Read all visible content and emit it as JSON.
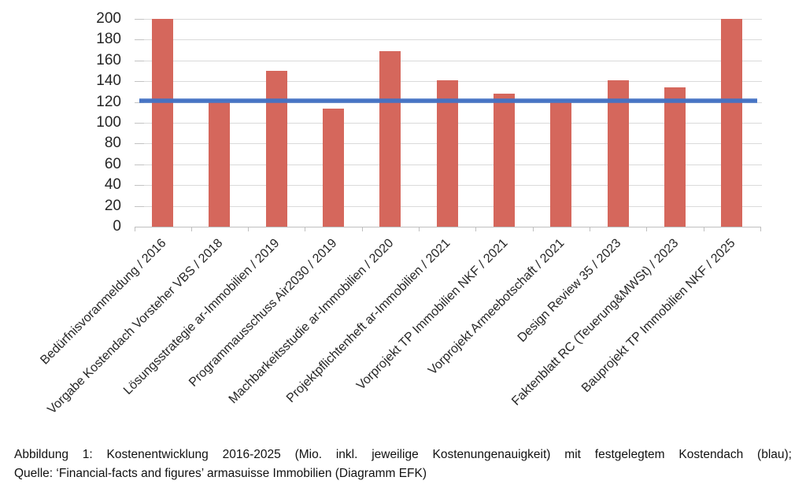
{
  "figure": {
    "caption_line1": "Abbildung 1: Kostenentwicklung 2016-2025 (Mio. inkl. jeweilige Kostenungenauigkeit) mit festgelegtem Kostendach (blau);",
    "caption_line2": "Quelle: ‘Financial-facts and figures’ armasuisse Immobilien (Diagramm EFK)"
  },
  "chart_data": {
    "type": "bar",
    "title": "",
    "xlabel": "",
    "ylabel": "",
    "categories": [
      "Bedürfnisvoranmeldung / 2016",
      "Vorgabe Kostendach Vorsteher VBS / 2018",
      "Lösungsstrategie ar-Immobilien / 2019",
      "Programmausschuss Air2030 / 2019",
      "Machbarkeitsstudie ar-Immobilien / 2020",
      "Projektpflichtenheft ar-Immobilien / 2021",
      "Vorprojekt TP Immobilien NKF / 2021",
      "Vorprojekt Armeebotschaft / 2021",
      "Design Review 35 / 2023",
      "Faktenblatt RC (Teuerung&MWSt) / 2023",
      "Bauprojekt TP Immobilien NKF / 2025"
    ],
    "values": [
      200,
      120,
      150,
      114,
      169,
      141,
      128,
      120,
      141,
      134,
      200
    ],
    "ylim": [
      0,
      200
    ],
    "yticks": [
      0,
      20,
      40,
      60,
      80,
      100,
      120,
      140,
      160,
      180,
      200
    ],
    "grid": true,
    "legend": "none",
    "bar_color": "#D5675C",
    "reference_line": {
      "label": "festgelegtes Kostendach (blau)",
      "value": 121,
      "color": "#4472C4"
    }
  }
}
